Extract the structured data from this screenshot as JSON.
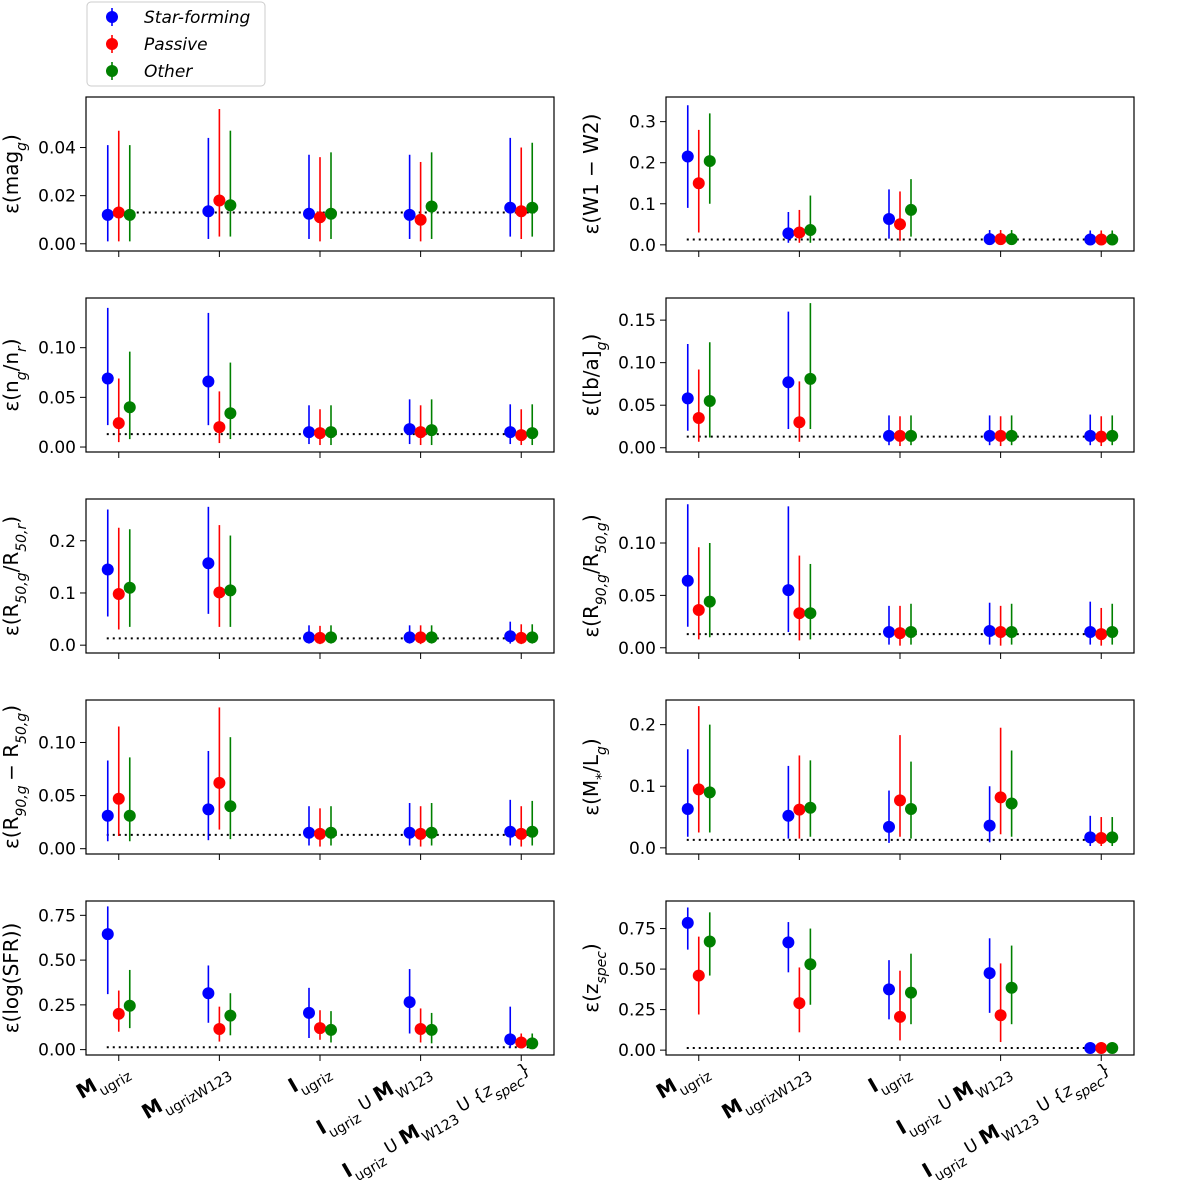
{
  "legend": [
    {
      "name": "Star-forming",
      "color": "#0000ff"
    },
    {
      "name": "Passive",
      "color": "#ff0000"
    },
    {
      "name": "Other",
      "color": "#008000"
    }
  ],
  "baseline_color": "#000000",
  "x_labels": [
    {
      "main": "M",
      "sub": "ugriz",
      "rest": []
    },
    {
      "main": "M",
      "sub": "ugrizW123",
      "rest": []
    },
    {
      "main": "I",
      "sub": "ugriz",
      "rest": []
    },
    {
      "main": "I",
      "sub": "ugriz",
      "rest": [
        {
          "t": " U "
        },
        {
          "t": "M",
          "b": true
        },
        {
          "t": "W123",
          "s": true
        }
      ]
    },
    {
      "main": "I",
      "sub": "ugriz",
      "rest": [
        {
          "t": " U "
        },
        {
          "t": "M",
          "b": true
        },
        {
          "t": "W123",
          "s": true
        },
        {
          "t": " U {"
        },
        {
          "t": "z",
          "i": true
        },
        {
          "t": "spec",
          "i": true,
          "s": true
        },
        {
          "t": "}"
        }
      ]
    }
  ],
  "chart_data": [
    {
      "type": "errorbar",
      "ylabel": "ε(mag_g)",
      "ylim": [
        -0.003,
        0.061
      ],
      "yticks": [
        "0.00",
        "0.02",
        "0.04"
      ],
      "ytick_values": [
        0.0,
        0.02,
        0.04
      ],
      "baseline": 0.013,
      "series": [
        {
          "name": "Star-forming",
          "values": [
            0.012,
            0.0135,
            0.0125,
            0.012,
            0.015
          ],
          "low": [
            0.001,
            0.002,
            0.002,
            0.002,
            0.003
          ],
          "high": [
            0.041,
            0.044,
            0.037,
            0.037,
            0.044
          ]
        },
        {
          "name": "Passive",
          "values": [
            0.013,
            0.018,
            0.011,
            0.01,
            0.0135
          ],
          "low": [
            0.001,
            0.003,
            0.001,
            0.001,
            0.002
          ],
          "high": [
            0.047,
            0.056,
            0.036,
            0.034,
            0.04
          ]
        },
        {
          "name": "Other",
          "values": [
            0.012,
            0.016,
            0.0125,
            0.0155,
            0.015
          ],
          "low": [
            0.001,
            0.003,
            0.002,
            0.002,
            0.003
          ],
          "high": [
            0.041,
            0.047,
            0.038,
            0.038,
            0.042
          ]
        }
      ]
    },
    {
      "type": "errorbar",
      "ylabel": "ε(W1 − W2)",
      "ylim": [
        -0.015,
        0.36
      ],
      "yticks": [
        "0.0",
        "0.1",
        "0.2",
        "0.3"
      ],
      "ytick_values": [
        0.0,
        0.1,
        0.2,
        0.3
      ],
      "baseline": 0.013,
      "series": [
        {
          "name": "Star-forming",
          "values": [
            0.215,
            0.028,
            0.063,
            0.014,
            0.013
          ],
          "low": [
            0.09,
            0.005,
            0.015,
            0.003,
            0.003
          ],
          "high": [
            0.34,
            0.08,
            0.135,
            0.036,
            0.035
          ]
        },
        {
          "name": "Passive",
          "values": [
            0.15,
            0.03,
            0.05,
            0.014,
            0.013
          ],
          "low": [
            0.03,
            0.005,
            0.01,
            0.003,
            0.003
          ],
          "high": [
            0.28,
            0.085,
            0.13,
            0.036,
            0.035
          ]
        },
        {
          "name": "Other",
          "values": [
            0.204,
            0.036,
            0.085,
            0.014,
            0.013
          ],
          "low": [
            0.1,
            0.005,
            0.02,
            0.003,
            0.003
          ],
          "high": [
            0.32,
            0.12,
            0.16,
            0.036,
            0.035
          ]
        }
      ]
    },
    {
      "type": "errorbar",
      "ylabel": "ε(n_g/n_r)",
      "ylim": [
        -0.005,
        0.15
      ],
      "yticks": [
        "0.00",
        "0.05",
        "0.10"
      ],
      "ytick_values": [
        0.0,
        0.05,
        0.1
      ],
      "baseline": 0.013,
      "series": [
        {
          "name": "Star-forming",
          "values": [
            0.069,
            0.066,
            0.015,
            0.018,
            0.015
          ],
          "low": [
            0.022,
            0.022,
            0.003,
            0.003,
            0.003
          ],
          "high": [
            0.14,
            0.135,
            0.042,
            0.048,
            0.043
          ]
        },
        {
          "name": "Passive",
          "values": [
            0.024,
            0.02,
            0.014,
            0.015,
            0.012
          ],
          "low": [
            0.005,
            0.004,
            0.002,
            0.002,
            0.002
          ],
          "high": [
            0.069,
            0.056,
            0.038,
            0.042,
            0.038
          ]
        },
        {
          "name": "Other",
          "values": [
            0.04,
            0.034,
            0.015,
            0.017,
            0.014
          ],
          "low": [
            0.008,
            0.008,
            0.002,
            0.002,
            0.002
          ],
          "high": [
            0.096,
            0.085,
            0.042,
            0.048,
            0.043
          ]
        }
      ]
    },
    {
      "type": "errorbar",
      "ylabel": "ε([b/a]_g)",
      "ylim": [
        -0.005,
        0.176
      ],
      "yticks": [
        "0.00",
        "0.05",
        "0.10",
        "0.15"
      ],
      "ytick_values": [
        0.0,
        0.05,
        0.1,
        0.15
      ],
      "baseline": 0.013,
      "series": [
        {
          "name": "Star-forming",
          "values": [
            0.058,
            0.077,
            0.014,
            0.014,
            0.014
          ],
          "low": [
            0.02,
            0.022,
            0.003,
            0.003,
            0.003
          ],
          "high": [
            0.122,
            0.16,
            0.038,
            0.038,
            0.039
          ]
        },
        {
          "name": "Passive",
          "values": [
            0.035,
            0.03,
            0.014,
            0.014,
            0.013
          ],
          "low": [
            0.007,
            0.007,
            0.002,
            0.002,
            0.002
          ],
          "high": [
            0.092,
            0.078,
            0.037,
            0.037,
            0.037
          ]
        },
        {
          "name": "Other",
          "values": [
            0.055,
            0.081,
            0.014,
            0.014,
            0.014
          ],
          "low": [
            0.012,
            0.022,
            0.003,
            0.003,
            0.003
          ],
          "high": [
            0.124,
            0.17,
            0.038,
            0.038,
            0.038
          ]
        }
      ]
    },
    {
      "type": "errorbar",
      "ylabel": "ε(R_50,g/R_50,r)",
      "ylim": [
        -0.015,
        0.28
      ],
      "yticks": [
        "0.0",
        "0.1",
        "0.2"
      ],
      "ytick_values": [
        0.0,
        0.1,
        0.2
      ],
      "baseline": 0.013,
      "series": [
        {
          "name": "Star-forming",
          "values": [
            0.145,
            0.157,
            0.015,
            0.015,
            0.017
          ],
          "low": [
            0.055,
            0.06,
            0.003,
            0.003,
            0.003
          ],
          "high": [
            0.26,
            0.265,
            0.038,
            0.038,
            0.045
          ]
        },
        {
          "name": "Passive",
          "values": [
            0.098,
            0.101,
            0.014,
            0.015,
            0.014
          ],
          "low": [
            0.03,
            0.035,
            0.002,
            0.002,
            0.002
          ],
          "high": [
            0.225,
            0.23,
            0.037,
            0.038,
            0.04
          ]
        },
        {
          "name": "Other",
          "values": [
            0.11,
            0.105,
            0.015,
            0.015,
            0.015
          ],
          "low": [
            0.035,
            0.035,
            0.003,
            0.003,
            0.003
          ],
          "high": [
            0.222,
            0.21,
            0.038,
            0.038,
            0.04
          ]
        }
      ]
    },
    {
      "type": "errorbar",
      "ylabel": "ε(R_90,g/R_50,g)",
      "ylim": [
        -0.005,
        0.142
      ],
      "yticks": [
        "0.00",
        "0.05",
        "0.10"
      ],
      "ytick_values": [
        0.0,
        0.05,
        0.1
      ],
      "baseline": 0.013,
      "series": [
        {
          "name": "Star-forming",
          "values": [
            0.064,
            0.055,
            0.015,
            0.016,
            0.015
          ],
          "low": [
            0.02,
            0.015,
            0.003,
            0.003,
            0.003
          ],
          "high": [
            0.137,
            0.135,
            0.04,
            0.043,
            0.044
          ]
        },
        {
          "name": "Passive",
          "values": [
            0.036,
            0.033,
            0.014,
            0.015,
            0.013
          ],
          "low": [
            0.008,
            0.007,
            0.002,
            0.002,
            0.002
          ],
          "high": [
            0.096,
            0.088,
            0.04,
            0.04,
            0.038
          ]
        },
        {
          "name": "Other",
          "values": [
            0.044,
            0.033,
            0.015,
            0.015,
            0.015
          ],
          "low": [
            0.01,
            0.008,
            0.003,
            0.003,
            0.003
          ],
          "high": [
            0.1,
            0.08,
            0.042,
            0.042,
            0.042
          ]
        }
      ]
    },
    {
      "type": "errorbar",
      "ylabel": "ε(R_90,g − R_50,g)",
      "ylim": [
        -0.005,
        0.14
      ],
      "yticks": [
        "0.00",
        "0.05",
        "0.10"
      ],
      "ytick_values": [
        0.0,
        0.05,
        0.1
      ],
      "baseline": 0.013,
      "series": [
        {
          "name": "Star-forming",
          "values": [
            0.031,
            0.037,
            0.015,
            0.015,
            0.016
          ],
          "low": [
            0.007,
            0.008,
            0.003,
            0.003,
            0.003
          ],
          "high": [
            0.083,
            0.092,
            0.04,
            0.043,
            0.046
          ]
        },
        {
          "name": "Passive",
          "values": [
            0.047,
            0.062,
            0.014,
            0.014,
            0.014
          ],
          "low": [
            0.012,
            0.018,
            0.002,
            0.002,
            0.002
          ],
          "high": [
            0.115,
            0.133,
            0.038,
            0.04,
            0.04
          ]
        },
        {
          "name": "Other",
          "values": [
            0.031,
            0.04,
            0.015,
            0.015,
            0.016
          ],
          "low": [
            0.007,
            0.009,
            0.003,
            0.003,
            0.003
          ],
          "high": [
            0.086,
            0.105,
            0.04,
            0.043,
            0.045
          ]
        }
      ]
    },
    {
      "type": "errorbar",
      "ylabel": "ε(M_*/L_g)",
      "ylim": [
        -0.01,
        0.24
      ],
      "yticks": [
        "0.0",
        "0.1",
        "0.2"
      ],
      "ytick_values": [
        0.0,
        0.1,
        0.2
      ],
      "baseline": 0.013,
      "series": [
        {
          "name": "Star-forming",
          "values": [
            0.063,
            0.052,
            0.034,
            0.036,
            0.017
          ],
          "low": [
            0.018,
            0.015,
            0.008,
            0.009,
            0.003
          ],
          "high": [
            0.16,
            0.133,
            0.093,
            0.1,
            0.052
          ]
        },
        {
          "name": "Passive",
          "values": [
            0.095,
            0.062,
            0.077,
            0.082,
            0.016
          ],
          "low": [
            0.025,
            0.015,
            0.018,
            0.022,
            0.003
          ],
          "high": [
            0.23,
            0.15,
            0.183,
            0.195,
            0.05
          ]
        },
        {
          "name": "Other",
          "values": [
            0.09,
            0.065,
            0.063,
            0.072,
            0.017
          ],
          "low": [
            0.025,
            0.018,
            0.015,
            0.018,
            0.003
          ],
          "high": [
            0.2,
            0.142,
            0.14,
            0.158,
            0.05
          ]
        }
      ]
    },
    {
      "type": "errorbar",
      "ylabel": "ε(log(SFR))",
      "ylim": [
        -0.03,
        0.83
      ],
      "yticks": [
        "0.00",
        "0.25",
        "0.50",
        "0.75"
      ],
      "ytick_values": [
        0.0,
        0.25,
        0.5,
        0.75
      ],
      "baseline": 0.013,
      "series": [
        {
          "name": "Star-forming",
          "values": [
            0.645,
            0.315,
            0.205,
            0.265,
            0.057
          ],
          "low": [
            0.31,
            0.15,
            0.065,
            0.09,
            0.01
          ],
          "high": [
            0.8,
            0.47,
            0.345,
            0.45,
            0.24
          ]
        },
        {
          "name": "Passive",
          "values": [
            0.2,
            0.115,
            0.12,
            0.115,
            0.04
          ],
          "low": [
            0.1,
            0.045,
            0.055,
            0.04,
            0.008
          ],
          "high": [
            0.33,
            0.24,
            0.22,
            0.23,
            0.09
          ]
        },
        {
          "name": "Other",
          "values": [
            0.245,
            0.19,
            0.11,
            0.11,
            0.035
          ],
          "low": [
            0.12,
            0.08,
            0.04,
            0.035,
            0.008
          ],
          "high": [
            0.445,
            0.315,
            0.215,
            0.205,
            0.09
          ]
        }
      ]
    },
    {
      "type": "errorbar",
      "ylabel": "ε(z_spec)",
      "ylim": [
        -0.03,
        0.92
      ],
      "yticks": [
        "0.00",
        "0.25",
        "0.50",
        "0.75"
      ],
      "ytick_values": [
        0.0,
        0.25,
        0.5,
        0.75
      ],
      "baseline": 0.013,
      "series": [
        {
          "name": "Star-forming",
          "values": [
            0.785,
            0.665,
            0.375,
            0.475,
            0.013
          ],
          "low": [
            0.62,
            0.48,
            0.19,
            0.23,
            0.003
          ],
          "high": [
            0.88,
            0.79,
            0.555,
            0.69,
            0.04
          ]
        },
        {
          "name": "Passive",
          "values": [
            0.46,
            0.29,
            0.205,
            0.215,
            0.013
          ],
          "low": [
            0.22,
            0.11,
            0.06,
            0.05,
            0.003
          ],
          "high": [
            0.7,
            0.51,
            0.49,
            0.535,
            0.04
          ]
        },
        {
          "name": "Other",
          "values": [
            0.67,
            0.53,
            0.355,
            0.385,
            0.013
          ],
          "low": [
            0.46,
            0.28,
            0.16,
            0.16,
            0.003
          ],
          "high": [
            0.85,
            0.75,
            0.595,
            0.645,
            0.04
          ]
        }
      ]
    }
  ]
}
